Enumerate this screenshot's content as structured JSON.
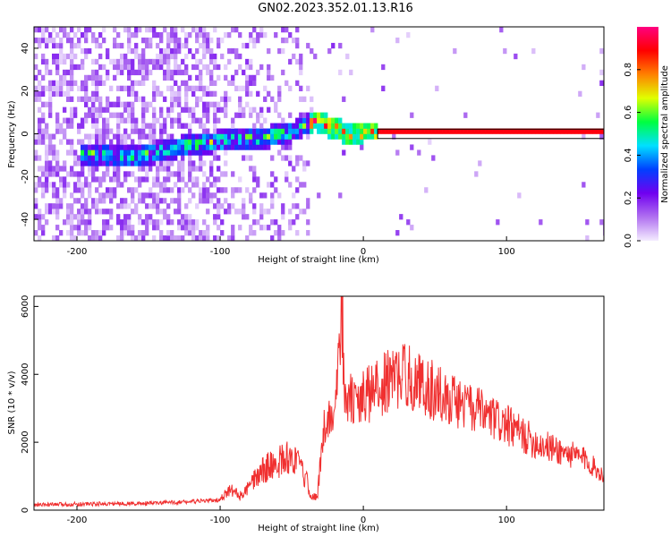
{
  "title": "GN02.2023.352.01.13.R16",
  "chart_data": [
    {
      "type": "heatmap",
      "xlabel": "Height of straight line (km)",
      "ylabel": "Frequency (Hz)",
      "xlim": [
        -230,
        168
      ],
      "ylim": [
        -50,
        50
      ],
      "xticks": [
        -200,
        -100,
        0,
        100
      ],
      "yticks": [
        -40,
        -20,
        0,
        20,
        40
      ],
      "colorbar": {
        "label": "Normalized spectral amplitude",
        "range": [
          0,
          1
        ],
        "ticks": [
          "0.0",
          "0.2",
          "0.4",
          "0.6",
          "0.8"
        ],
        "colors": [
          "#f4ecff",
          "#b070f0",
          "#7000f0",
          "#0040ff",
          "#00e0ff",
          "#00ff40",
          "#e0ff00",
          "#ff8000",
          "#ff0000",
          "#ff0080"
        ]
      },
      "ridge": [
        {
          "x": -190,
          "y": -11
        },
        {
          "x": -160,
          "y": -12
        },
        {
          "x": -140,
          "y": -9
        },
        {
          "x": -120,
          "y": -6
        },
        {
          "x": -90,
          "y": -4
        },
        {
          "x": -70,
          "y": -3
        },
        {
          "x": -50,
          "y": 0
        },
        {
          "x": -35,
          "y": 5
        },
        {
          "x": -20,
          "y": 1
        },
        {
          "x": -10,
          "y": -2
        },
        {
          "x": 0,
          "y": 0
        },
        {
          "x": 10,
          "y": 0
        },
        {
          "x": 100,
          "y": 0
        },
        {
          "x": 165,
          "y": 0
        }
      ]
    },
    {
      "type": "line",
      "xlabel": "Height of straight line (km)",
      "ylabel": "SNR (10 * v/v)",
      "xlim": [
        -230,
        168
      ],
      "ylim": [
        0,
        6300
      ],
      "xticks": [
        -200,
        -100,
        0,
        100
      ],
      "yticks": [
        0,
        2000,
        4000,
        6000
      ],
      "color": "#f03030",
      "x": [
        -230,
        -200,
        -150,
        -120,
        -100,
        -93,
        -85,
        -70,
        -60,
        -50,
        -45,
        -40,
        -36,
        -32,
        -28,
        -25,
        -22,
        -18,
        -15,
        -13,
        -10,
        -5,
        0,
        10,
        20,
        30,
        40,
        60,
        80,
        100,
        120,
        140,
        155,
        168
      ],
      "y": [
        150,
        180,
        200,
        250,
        300,
        600,
        400,
        1200,
        1400,
        1600,
        1300,
        900,
        400,
        400,
        2300,
        2800,
        2700,
        3600,
        6300,
        3000,
        3300,
        3100,
        3300,
        3600,
        3850,
        4000,
        3700,
        3300,
        2900,
        2500,
        2000,
        1700,
        1500,
        1000
      ]
    }
  ]
}
